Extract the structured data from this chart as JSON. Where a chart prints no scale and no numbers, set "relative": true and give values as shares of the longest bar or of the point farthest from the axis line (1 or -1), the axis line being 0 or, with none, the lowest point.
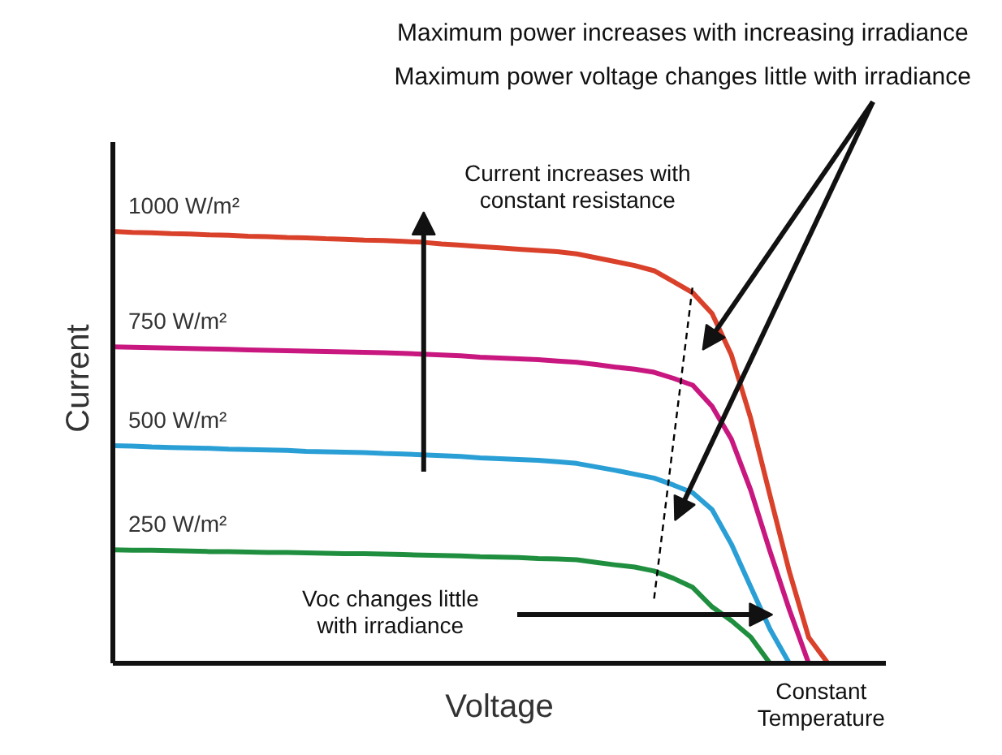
{
  "chart_data": {
    "type": "line",
    "relative": true,
    "xlabel": "Voltage",
    "ylabel": "Current",
    "categories": [
      null,
      null,
      null,
      null,
      null,
      null,
      null,
      null,
      null,
      null,
      null,
      null,
      null,
      null,
      null,
      null,
      null,
      null,
      null,
      null,
      null,
      null,
      null,
      null,
      null,
      null,
      null,
      null,
      null,
      null,
      null,
      null,
      null,
      null,
      null,
      null,
      null,
      null
    ],
    "series": [
      {
        "name": "1000 W/m²",
        "color": "#d9412b",
        "values": [
          1.0,
          0.998,
          0.997,
          0.995,
          0.994,
          0.992,
          0.991,
          0.989,
          0.988,
          0.986,
          0.985,
          0.983,
          0.982,
          0.98,
          0.979,
          0.977,
          0.975,
          0.971,
          0.968,
          0.965,
          0.962,
          0.959,
          0.956,
          0.953,
          0.948,
          0.939,
          0.93,
          0.921,
          0.909,
          0.884,
          0.858,
          0.81,
          0.714,
          0.567,
          0.388,
          0.212,
          0.06,
          0
        ]
      },
      {
        "name": "750 W/m²",
        "color": "#c8177f",
        "values": [
          0.733,
          0.732,
          0.731,
          0.73,
          0.729,
          0.728,
          0.727,
          0.726,
          0.725,
          0.724,
          0.723,
          0.722,
          0.721,
          0.72,
          0.719,
          0.718,
          0.716,
          0.714,
          0.712,
          0.709,
          0.707,
          0.705,
          0.703,
          0.7,
          0.697,
          0.692,
          0.686,
          0.681,
          0.674,
          0.66,
          0.644,
          0.595,
          0.519,
          0.401,
          0.259,
          0.124,
          0,
          null
        ]
      },
      {
        "name": "500 W/m²",
        "color": "#2a9fd6",
        "values": [
          0.504,
          0.503,
          0.501,
          0.5,
          0.499,
          0.498,
          0.496,
          0.495,
          0.494,
          0.493,
          0.491,
          0.49,
          0.489,
          0.488,
          0.486,
          0.485,
          0.483,
          0.481,
          0.479,
          0.476,
          0.474,
          0.472,
          0.47,
          0.467,
          0.463,
          0.455,
          0.447,
          0.438,
          0.429,
          0.413,
          0.395,
          0.356,
          0.276,
          0.177,
          0.079,
          0,
          null,
          null
        ]
      },
      {
        "name": "250 W/m²",
        "color": "#1f8f3f",
        "values": [
          0.263,
          0.262,
          0.262,
          0.261,
          0.26,
          0.259,
          0.259,
          0.258,
          0.257,
          0.257,
          0.256,
          0.255,
          0.254,
          0.254,
          0.253,
          0.252,
          0.251,
          0.25,
          0.249,
          0.247,
          0.246,
          0.245,
          0.243,
          0.242,
          0.24,
          0.234,
          0.228,
          0.223,
          0.214,
          0.197,
          0.176,
          0.131,
          0.099,
          0.061,
          0,
          null,
          null,
          null
        ]
      },
      {
        "type": "line",
        "line_style": "dashed",
        "color": "#000000",
        "values": [
          null,
          null,
          null,
          null,
          null,
          null,
          null,
          null,
          null,
          null,
          null,
          null,
          null,
          null,
          null,
          null,
          null,
          null,
          null,
          null,
          null,
          null,
          null,
          null,
          null,
          null,
          null,
          null,
          0.15,
          0.513,
          0.876,
          null,
          null,
          null,
          null,
          null,
          null,
          null
        ]
      }
    ],
    "annotations": [
      "Maximum power increases with increasing irradiance",
      "Maximum power voltage changes little with irradiance",
      "Current increases with\nconstant resistance",
      "Voc changes little\nwith irradiance",
      "Constant\nTemperature"
    ]
  }
}
